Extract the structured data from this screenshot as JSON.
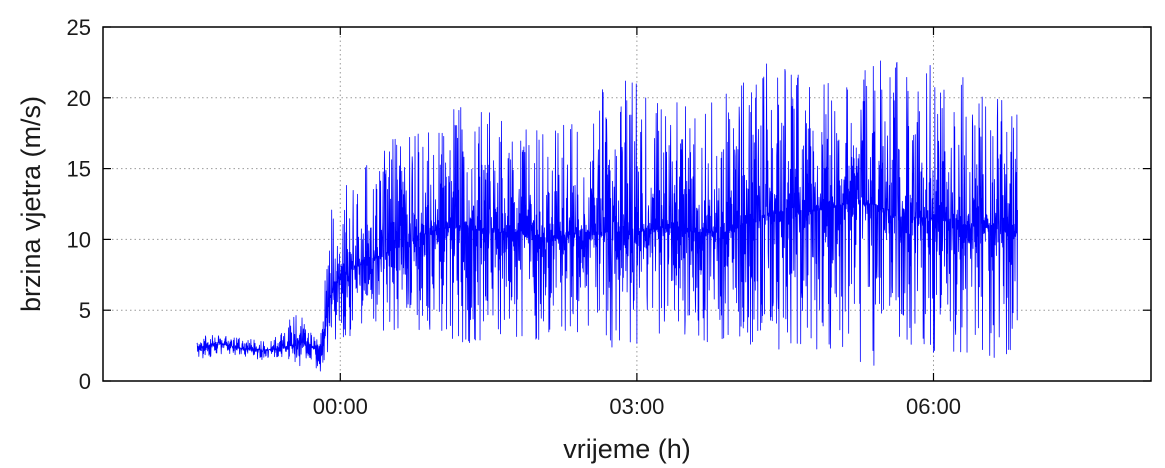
{
  "chart_data": {
    "type": "line",
    "title": "",
    "xlabel": "vrijeme (h)",
    "ylabel": "brzina vjetra (m/s)",
    "x_unit": "h",
    "y_unit": "m/s",
    "xlim": [
      -2.4,
      8.2
    ],
    "ylim": [
      0,
      25
    ],
    "x_ticks": [
      0,
      3,
      6
    ],
    "x_tick_labels": [
      "00:00",
      "03:00",
      "06:00"
    ],
    "y_ticks": [
      0,
      5,
      10,
      15,
      20,
      25
    ],
    "y_tick_labels": [
      "0",
      "5",
      "10",
      "15",
      "20",
      "25"
    ],
    "grid": true,
    "series_color": "#0000ff",
    "series": [
      {
        "x": [
          -1.45,
          -1.2,
          -1.0,
          -0.8,
          -0.6,
          -0.4,
          -0.3,
          -0.2,
          -0.1,
          0.0,
          0.3,
          0.6,
          0.9,
          1.2,
          1.5,
          1.8,
          2.1,
          2.4,
          2.7,
          3.0,
          3.3,
          3.6,
          3.9,
          4.2,
          4.5,
          4.8,
          5.1,
          5.4,
          5.7,
          6.0,
          6.3,
          6.6,
          6.85
        ],
        "mean": [
          2.4,
          2.6,
          2.3,
          2.2,
          2.3,
          2.8,
          2.5,
          2.0,
          6.0,
          7.5,
          8.5,
          9.5,
          10.5,
          11.0,
          10.5,
          10.5,
          10.0,
          10.5,
          10.5,
          10.5,
          11.0,
          10.5,
          10.5,
          11.5,
          12.0,
          12.0,
          12.5,
          12.5,
          11.5,
          11.5,
          11.0,
          11.0,
          10.5
        ],
        "max": [
          3.2,
          3.3,
          3.0,
          2.9,
          3.4,
          5.5,
          3.5,
          3.0,
          12.0,
          13.5,
          16.0,
          17.5,
          18.5,
          20.5,
          19.0,
          18.0,
          17.5,
          19.5,
          21.5,
          21.0,
          20.0,
          19.5,
          20.5,
          22.0,
          23.5,
          22.0,
          22.0,
          23.0,
          22.5,
          23.0,
          21.5,
          20.0,
          19.5
        ],
        "min": [
          1.6,
          1.7,
          1.8,
          1.5,
          1.7,
          1.0,
          1.4,
          0.5,
          2.5,
          3.0,
          3.5,
          3.5,
          3.0,
          2.5,
          3.0,
          2.5,
          3.0,
          2.5,
          2.0,
          2.5,
          3.0,
          2.5,
          3.0,
          2.5,
          1.5,
          2.0,
          2.0,
          0.8,
          2.5,
          2.0,
          1.5,
          1.5,
          2.0
        ]
      }
    ]
  }
}
